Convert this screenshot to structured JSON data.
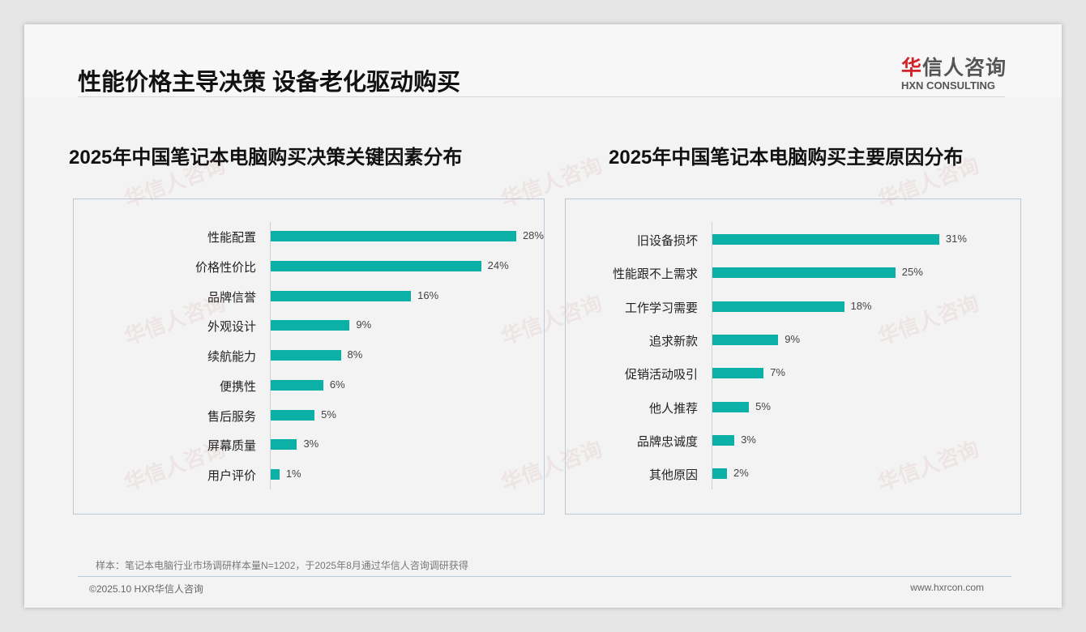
{
  "header": {
    "title": "性能价格主导决策 设备老化驱动购买",
    "logo_cn_accent": "华",
    "logo_cn_rest": "信人咨询",
    "logo_en": "HXN CONSULTING"
  },
  "chart_data": [
    {
      "type": "bar",
      "orientation": "horizontal",
      "title": "2025年中国笔记本电脑购买决策关键因素分布",
      "categories": [
        "性能配置",
        "价格性价比",
        "品牌信誉",
        "外观设计",
        "续航能力",
        "便携性",
        "售后服务",
        "屏幕质量",
        "用户评价"
      ],
      "values": [
        28,
        24,
        16,
        9,
        8,
        6,
        5,
        3,
        1
      ],
      "unit": "%",
      "color": "#0bb0a7"
    },
    {
      "type": "bar",
      "orientation": "horizontal",
      "title": "2025年中国笔记本电脑购买主要原因分布",
      "categories": [
        "旧设备损坏",
        "性能跟不上需求",
        "工作学习需要",
        "追求新款",
        "促销活动吸引",
        "他人推荐",
        "品牌忠诚度",
        "其他原因"
      ],
      "values": [
        31,
        25,
        18,
        9,
        7,
        5,
        3,
        2
      ],
      "unit": "%",
      "color": "#0bb0a7"
    }
  ],
  "footer": {
    "note": "样本：笔记本电脑行业市场调研样本量N=1202，于2025年8月通过华信人咨询调研获得",
    "copyright": "©2025.10 HXR华信人咨询",
    "url": "www.hxrcon.com"
  },
  "watermark": "华信人咨询"
}
